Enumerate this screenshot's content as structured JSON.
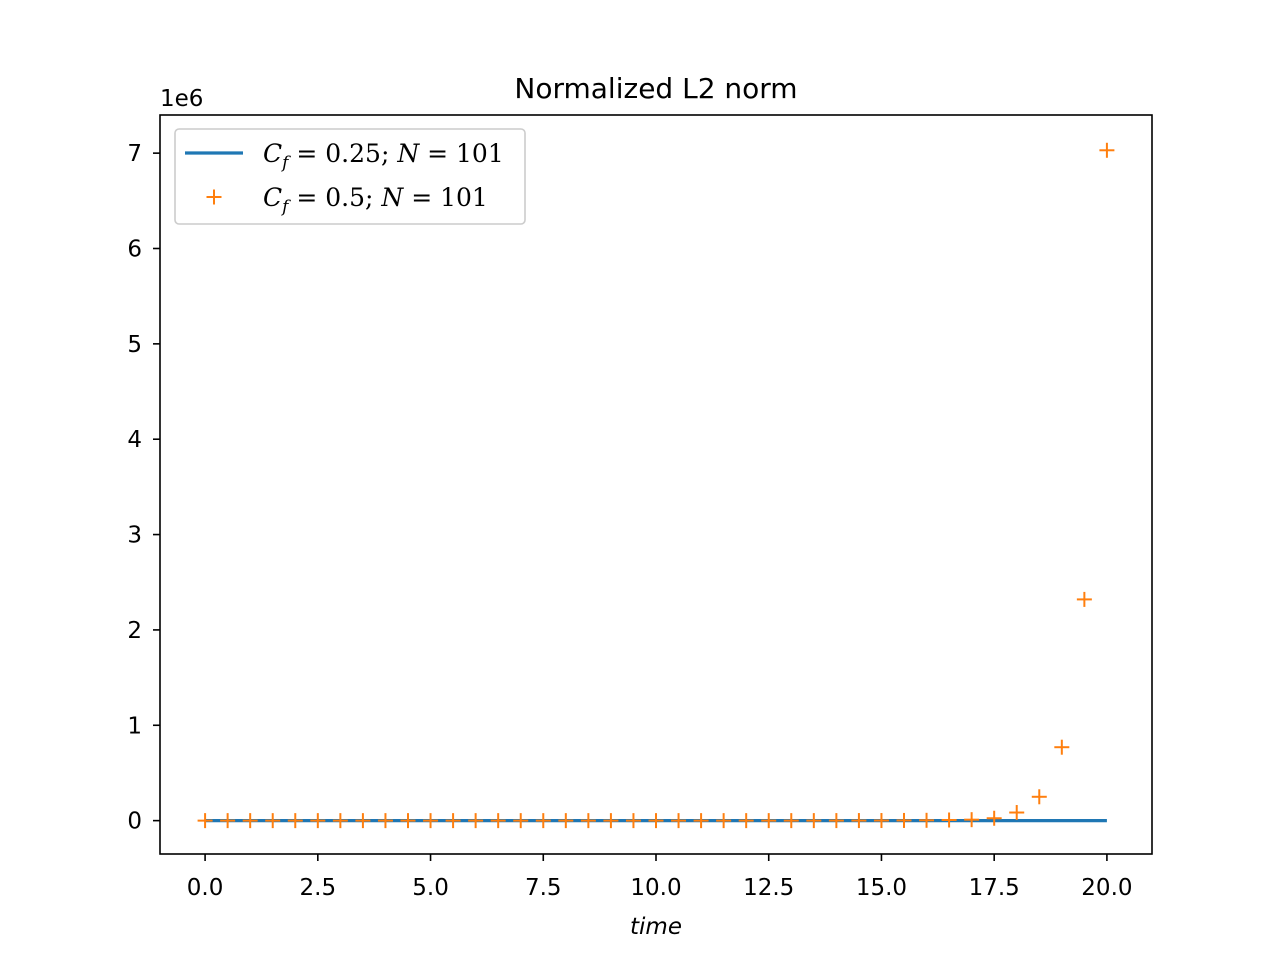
{
  "chart_data": {
    "type": "line",
    "title": "Normalized L2 norm",
    "xlabel": "time",
    "ylabel": "",
    "offset_text": "1e6",
    "xlim": [
      -1.0,
      21.0
    ],
    "ylim": [
      -350000,
      7400000
    ],
    "x_ticks": [
      0.0,
      2.5,
      5.0,
      7.5,
      10.0,
      12.5,
      15.0,
      17.5,
      20.0
    ],
    "x_tick_labels": [
      "0.0",
      "2.5",
      "5.0",
      "7.5",
      "10.0",
      "12.5",
      "15.0",
      "17.5",
      "20.0"
    ],
    "y_ticks": [
      0,
      1000000,
      2000000,
      3000000,
      4000000,
      5000000,
      6000000,
      7000000
    ],
    "y_tick_labels": [
      "0",
      "1",
      "2",
      "3",
      "4",
      "5",
      "6",
      "7"
    ],
    "grid": false,
    "legend_position": "top-left",
    "series": [
      {
        "name": "C_f = 0.25;  N = 101",
        "style": "line",
        "color": "#1f77b4",
        "x": [
          0,
          20
        ],
        "y": [
          1,
          1
        ]
      },
      {
        "name": "C_f = 0.5;  N = 101",
        "style": "markers",
        "marker": "+",
        "color": "#ff7f0e",
        "x": [
          0,
          0.5,
          1,
          1.5,
          2,
          2.5,
          3,
          3.5,
          4,
          4.5,
          5,
          5.5,
          6,
          6.5,
          7,
          7.5,
          8,
          8.5,
          9,
          9.5,
          10,
          10.5,
          11,
          11.5,
          12,
          12.5,
          13,
          13.5,
          14,
          14.5,
          15,
          15.5,
          16,
          16.5,
          17,
          17.5,
          18,
          18.5,
          19,
          19.5,
          20
        ],
        "y": [
          1,
          1,
          1,
          1,
          1,
          1,
          1,
          1,
          1,
          1,
          1,
          1,
          1,
          1,
          1,
          1,
          2,
          2,
          3,
          4,
          6,
          10,
          16,
          26,
          45,
          77,
          130,
          220,
          380,
          650,
          1100,
          1900,
          3300,
          6500,
          10000,
          25000,
          85000,
          250000,
          770000,
          2320000,
          7030000
        ]
      }
    ],
    "legend": [
      {
        "prefix_var": "C",
        "subscript": "f",
        "eq": " = 0.25;  ",
        "var2": "N",
        "eq2": " = 101"
      },
      {
        "prefix_var": "C",
        "subscript": "f",
        "eq": " = 0.5;  ",
        "var2": "N",
        "eq2": " = 101"
      }
    ]
  }
}
